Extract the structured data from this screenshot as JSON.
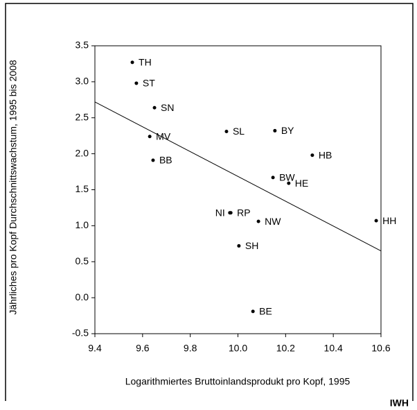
{
  "chart_data": {
    "type": "scatter",
    "xlabel": "Logarithmiertes Bruttoinlandsprodukt pro Kopf, 1995",
    "ylabel": "Jährliches pro Kopf Durchschnittswachstum, 1995 bis 2008",
    "source": "IWH",
    "labels": [
      "TH",
      "ST",
      "SN",
      "MV",
      "BB",
      "SL",
      "BY",
      "HB",
      "BW",
      "HE",
      "NI",
      "RP",
      "NW",
      "SH",
      "BE",
      "HH"
    ],
    "x": [
      9.557,
      9.574,
      9.65,
      9.63,
      9.644,
      9.952,
      10.155,
      10.312,
      10.147,
      10.213,
      9.966,
      9.97,
      10.086,
      10.004,
      10.063,
      10.58
    ],
    "y": [
      3.27,
      2.98,
      2.64,
      2.24,
      1.91,
      2.31,
      2.32,
      1.98,
      1.67,
      1.59,
      1.18,
      1.18,
      1.06,
      0.72,
      -0.19,
      1.07
    ],
    "color": "#000000",
    "trend_line": {
      "x": [
        9.4,
        10.6
      ],
      "y": [
        2.72,
        0.65
      ]
    },
    "xlim": [
      9.4,
      10.6
    ],
    "xticks": [
      9.4,
      9.6,
      9.8,
      {
        "value": 10,
        "label": "10.0"
      },
      10.2,
      10.4,
      10.6
    ],
    "ylim": [
      -0.5,
      3.5
    ],
    "yticks": [
      -0.5,
      {
        "value": 0,
        "label": "0.0"
      },
      0.5,
      {
        "value": 1,
        "label": "1.0"
      },
      1.5,
      {
        "value": 2,
        "label": "2.0"
      },
      2.5,
      {
        "value": 3,
        "label": "3.0"
      },
      3.5
    ],
    "grid": false
  }
}
